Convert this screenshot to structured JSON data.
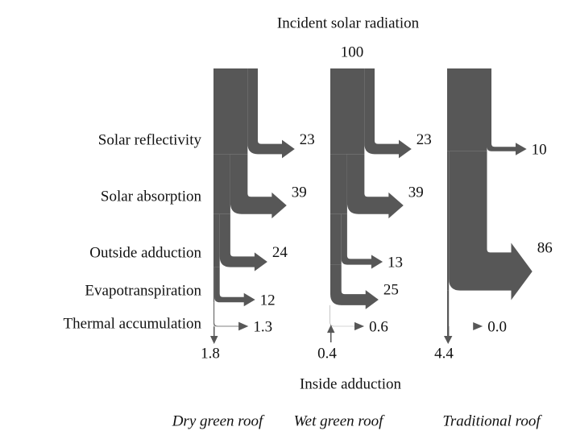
{
  "title": "Incident solar radiation",
  "incident": 100,
  "rows": [
    "Solar reflectivity",
    "Solar absorption",
    "Outside adduction",
    "Evapotranspiration",
    "Thermal accumulation"
  ],
  "bottom_label": "Inside adduction",
  "columns": [
    {
      "name": "Dry green roof",
      "values": [
        23,
        39,
        24,
        12,
        1.3
      ],
      "inside": 1.8
    },
    {
      "name": "Wet green roof",
      "values": [
        23,
        39,
        13,
        25,
        0.6
      ],
      "inside": 0.4
    },
    {
      "name": "Traditional roof",
      "values": [
        10,
        null,
        86,
        null,
        0
      ],
      "value_labels": [
        null,
        null,
        null,
        null,
        "0.0"
      ],
      "inside": 4.4
    }
  ]
}
